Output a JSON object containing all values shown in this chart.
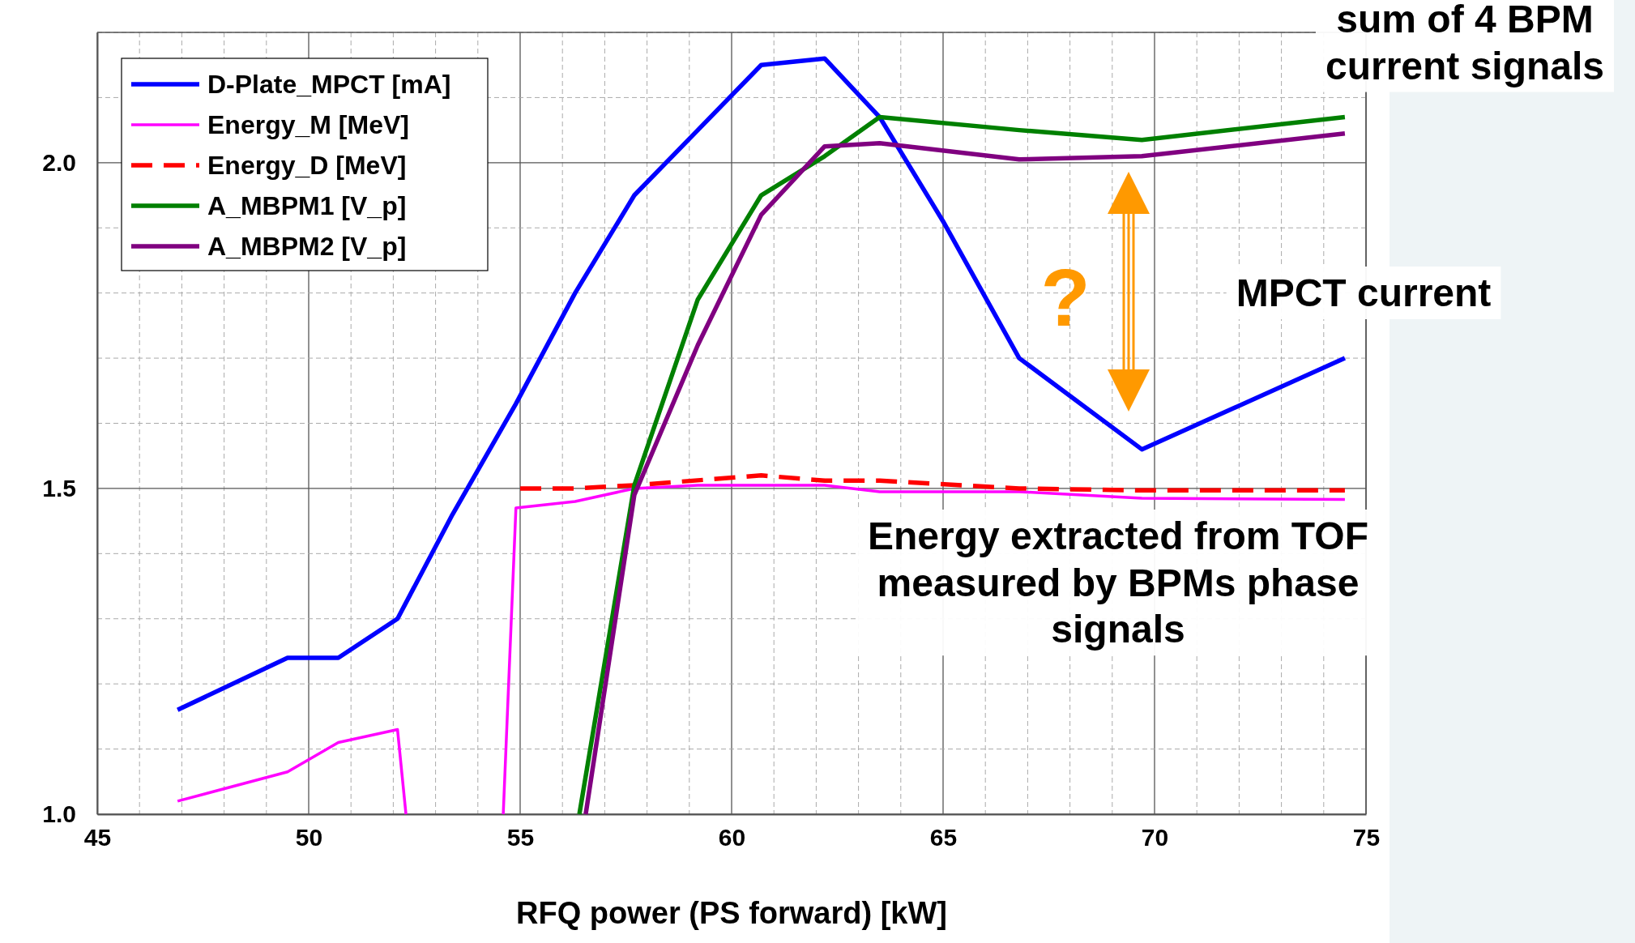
{
  "chart_data": {
    "type": "line",
    "xlabel": "RFQ power (PS forward) [kW]",
    "xlim": [
      45,
      75
    ],
    "ylim": [
      1.0,
      2.2
    ],
    "xticks": [
      45,
      {
        "value": 46,
        "label": null
      },
      {
        "value": 47,
        "label": null
      },
      {
        "value": 48,
        "label": null
      },
      {
        "value": 49,
        "label": null
      },
      50,
      {
        "value": 51,
        "label": null
      },
      {
        "value": 52,
        "label": null
      },
      {
        "value": 53,
        "label": null
      },
      {
        "value": 54,
        "label": null
      },
      55,
      {
        "value": 56,
        "label": null
      },
      {
        "value": 57,
        "label": null
      },
      {
        "value": 58,
        "label": null
      },
      {
        "value": 59,
        "label": null
      },
      60,
      {
        "value": 61,
        "label": null
      },
      {
        "value": 62,
        "label": null
      },
      {
        "value": 63,
        "label": null
      },
      {
        "value": 64,
        "label": null
      },
      65,
      {
        "value": 66,
        "label": null
      },
      {
        "value": 67,
        "label": null
      },
      {
        "value": 68,
        "label": null
      },
      {
        "value": 69,
        "label": null
      },
      70,
      {
        "value": 71,
        "label": null
      },
      {
        "value": 72,
        "label": null
      },
      {
        "value": 73,
        "label": null
      },
      {
        "value": 74,
        "label": null
      },
      75
    ],
    "yticks": [
      {
        "value": 1.0,
        "label": "1.0"
      },
      {
        "value": 1.1,
        "label": null
      },
      {
        "value": 1.2,
        "label": null
      },
      {
        "value": 1.3,
        "label": null
      },
      {
        "value": 1.4,
        "label": null
      },
      {
        "value": 1.5,
        "label": "1.5"
      },
      {
        "value": 1.6,
        "label": null
      },
      {
        "value": 1.7,
        "label": null
      },
      {
        "value": 1.8,
        "label": null
      },
      {
        "value": 1.9,
        "label": null
      },
      {
        "value": 2.0,
        "label": "2.0"
      },
      {
        "value": 2.1,
        "label": null
      },
      {
        "value": 2.2,
        "label": null
      }
    ],
    "grid": true,
    "legend": "top left",
    "annotations": [
      "sum of 4 BPM current signals",
      "MPCT current",
      "Energy extracted from TOF measured by BPMs phase signals",
      "?"
    ],
    "series": [
      {
        "name": "D-Plate_MPCT [mA]",
        "color": "#0000ff",
        "x": [
          46.9,
          49.5,
          50.7,
          52.1,
          53.4,
          54.9,
          56.3,
          57.7,
          59.2,
          60.7,
          62.2,
          63.5,
          65.0,
          66.8,
          69.7,
          74.5
        ],
        "values": [
          1.16,
          1.24,
          1.24,
          1.3,
          1.46,
          1.63,
          1.8,
          1.95,
          2.05,
          2.15,
          2.16,
          2.07,
          1.91,
          1.7,
          1.56,
          1.7
        ]
      },
      {
        "name": "Energy_M [MeV]",
        "color": "#ff00ff",
        "x": [
          46.9,
          49.5,
          50.7,
          52.1,
          52.3,
          53.5,
          54.6,
          54.9,
          56.3,
          57.7,
          59.2,
          60.7,
          62.2,
          63.5,
          66.8,
          69.7,
          74.5
        ],
        "values": [
          1.02,
          1.065,
          1.11,
          1.13,
          1.0,
          null,
          1.0,
          1.47,
          1.48,
          1.5,
          1.505,
          1.505,
          1.505,
          1.495,
          1.495,
          1.485,
          1.483
        ]
      },
      {
        "name": "Energy_D [MeV]",
        "color": "#ff0000",
        "line_style": "dashed",
        "x": [
          55.0,
          56.3,
          57.7,
          60.7,
          62.2,
          63.5,
          66.8,
          69.7,
          74.5
        ],
        "values": [
          1.5,
          1.5,
          1.505,
          1.52,
          1.512,
          1.512,
          1.5,
          1.497,
          1.497
        ]
      },
      {
        "name": "A_MBPM1 [V_p]",
        "color": "#008000",
        "x": [
          56.4,
          57.7,
          59.2,
          60.7,
          62.2,
          63.5,
          66.8,
          69.7,
          74.5
        ],
        "values": [
          1.0,
          1.505,
          1.79,
          1.95,
          2.01,
          2.07,
          2.05,
          2.035,
          2.07
        ]
      },
      {
        "name": "A_MBPM2 [V_p]",
        "color": "#800080",
        "x": [
          56.55,
          57.7,
          59.2,
          60.7,
          62.2,
          63.5,
          66.8,
          69.7,
          74.5
        ],
        "values": [
          1.0,
          1.49,
          1.72,
          1.92,
          2.025,
          2.03,
          2.005,
          2.01,
          2.045
        ]
      }
    ]
  }
}
